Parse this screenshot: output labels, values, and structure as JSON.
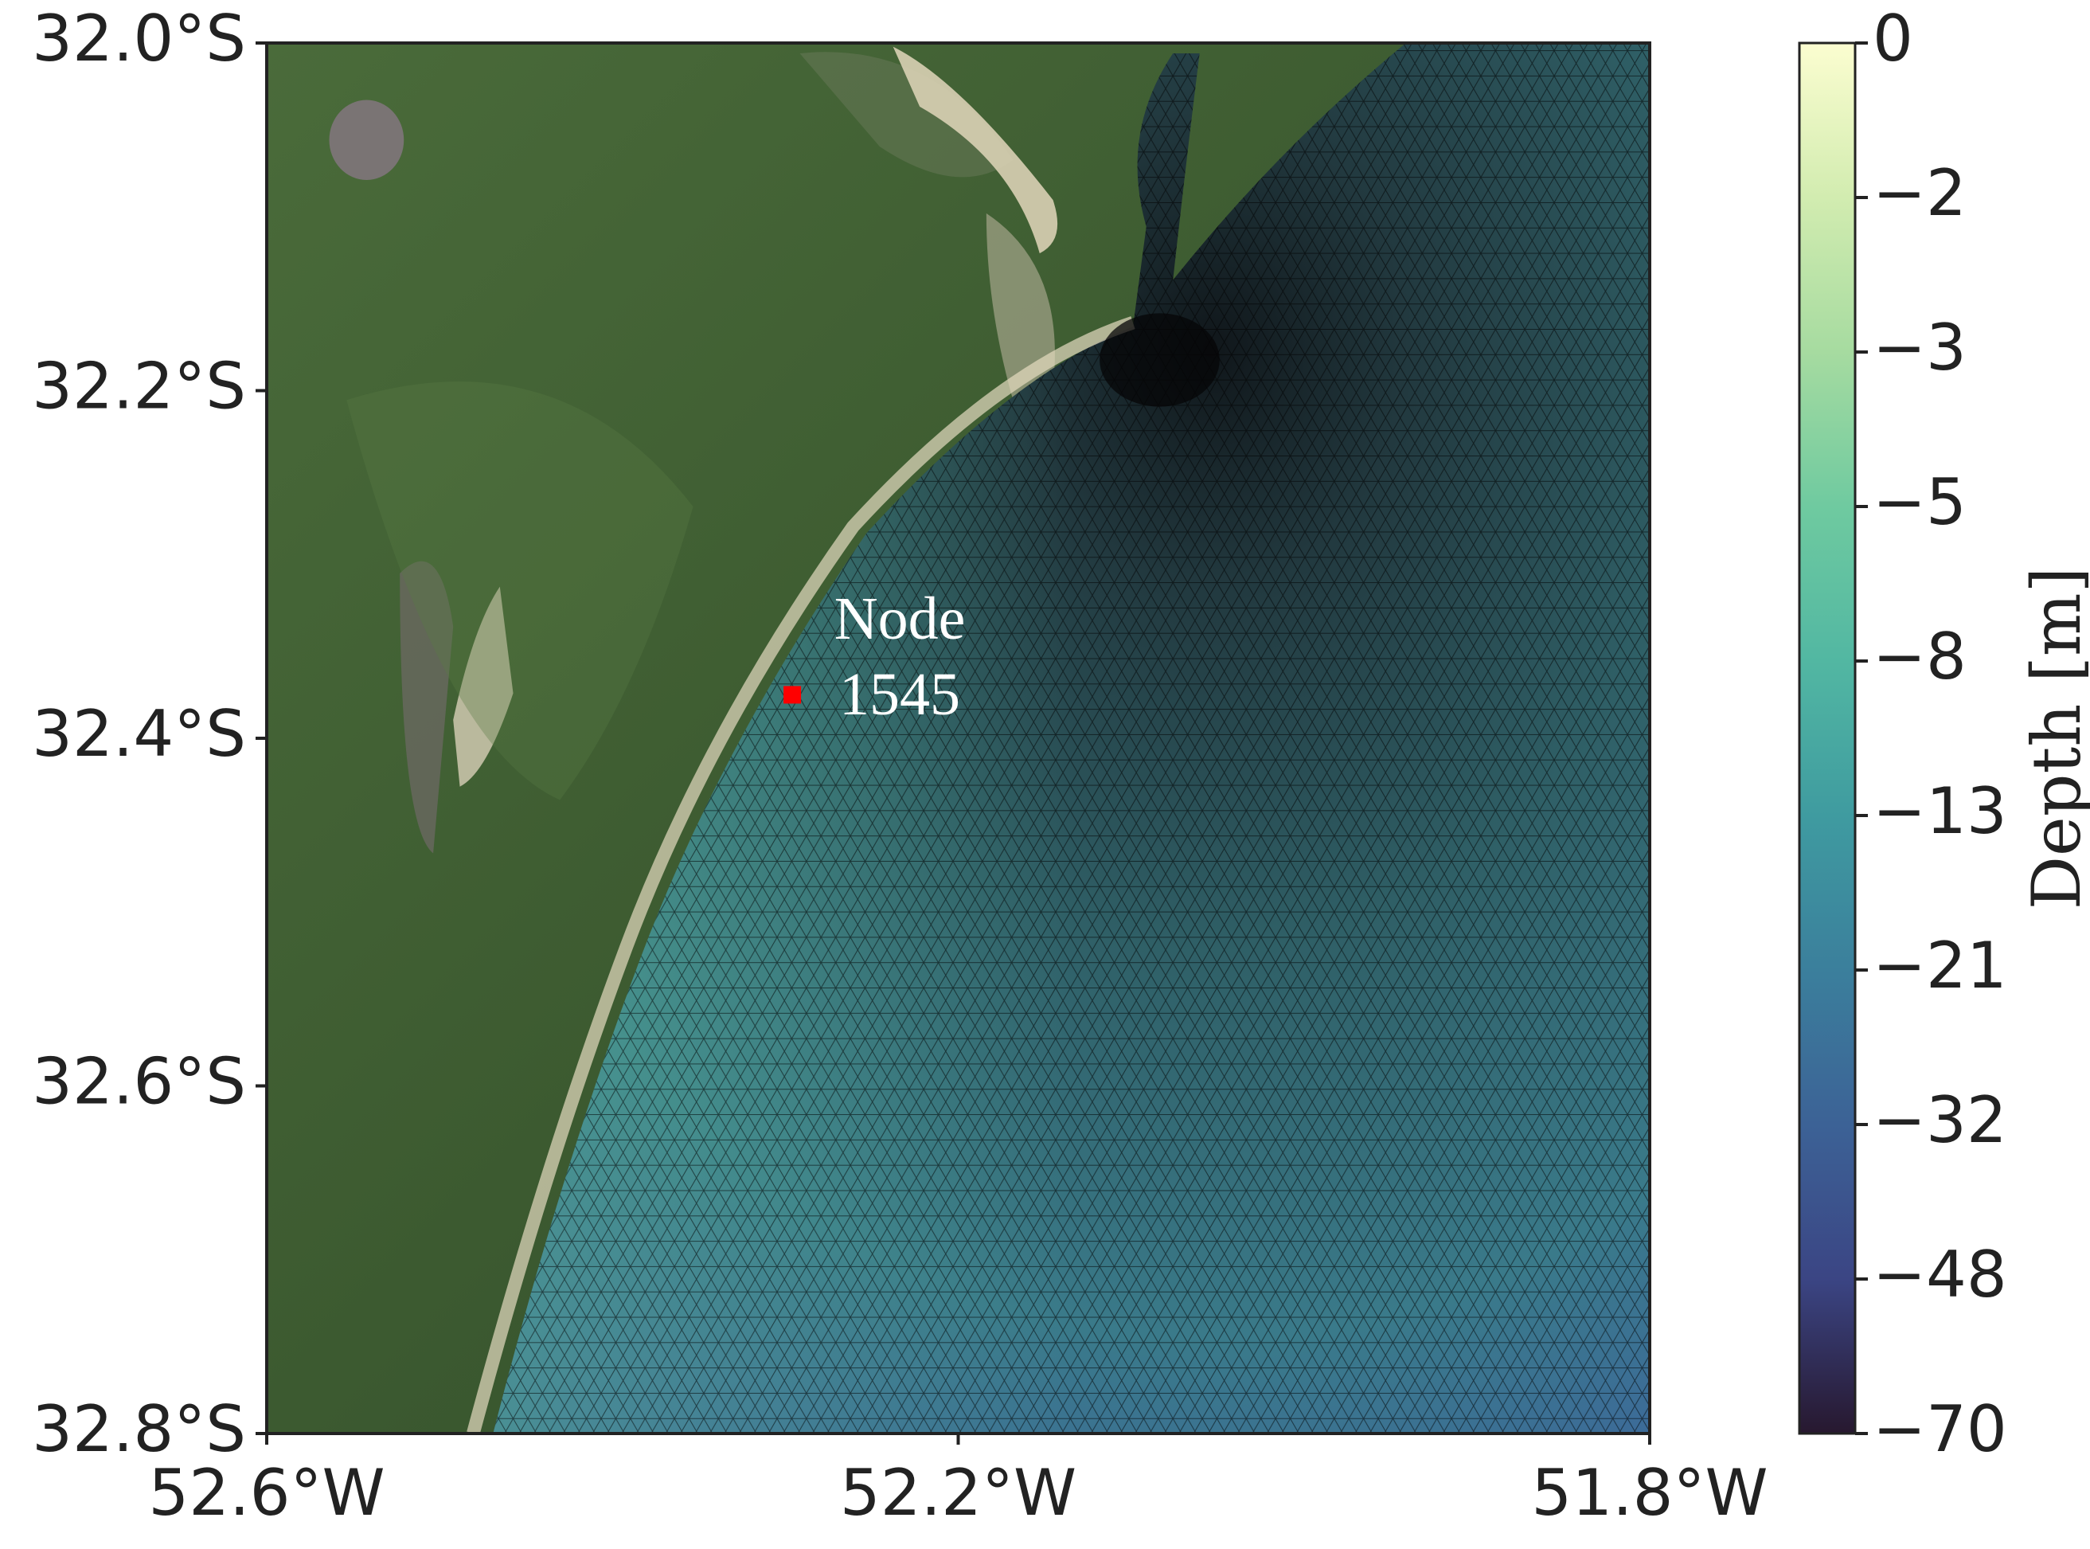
{
  "chart_data": {
    "type": "map",
    "xlim": [
      -52.6,
      -51.8
    ],
    "ylim": [
      -32.8,
      -32.0
    ],
    "xticks": [
      {
        "value": -52.6,
        "label": "52.6°W"
      },
      {
        "value": -52.2,
        "label": "52.2°W"
      },
      {
        "value": -51.8,
        "label": "51.8°W"
      }
    ],
    "yticks": [
      {
        "value": -32.0,
        "label": "32.0°S"
      },
      {
        "value": -32.2,
        "label": "32.2°S"
      },
      {
        "value": -32.4,
        "label": "32.4°S"
      },
      {
        "value": -32.6,
        "label": "32.6°S"
      },
      {
        "value": -32.8,
        "label": "32.8°S"
      }
    ],
    "marker": {
      "lon": -52.296,
      "lat": -32.375,
      "color": "#ff0000",
      "label": [
        "Node",
        "1545"
      ]
    },
    "colorbar": {
      "label": "Depth [m]",
      "ticks": [
        {
          "value": 0,
          "label": "0"
        },
        {
          "value": -2,
          "label": "−2"
        },
        {
          "value": -3,
          "label": "−3"
        },
        {
          "value": -5,
          "label": "−5"
        },
        {
          "value": -8,
          "label": "−8"
        },
        {
          "value": -13,
          "label": "−13"
        },
        {
          "value": -21,
          "label": "−21"
        },
        {
          "value": -32,
          "label": "−32"
        },
        {
          "value": -48,
          "label": "−48"
        },
        {
          "value": -70,
          "label": "−70"
        }
      ],
      "colors": [
        "#fbfdd0",
        "#d2ecb0",
        "#a6dba0",
        "#6fcaa0",
        "#52b7a2",
        "#3f9ba0",
        "#3b7f9c",
        "#3c6296",
        "#3b4584",
        "#27182f"
      ]
    }
  }
}
